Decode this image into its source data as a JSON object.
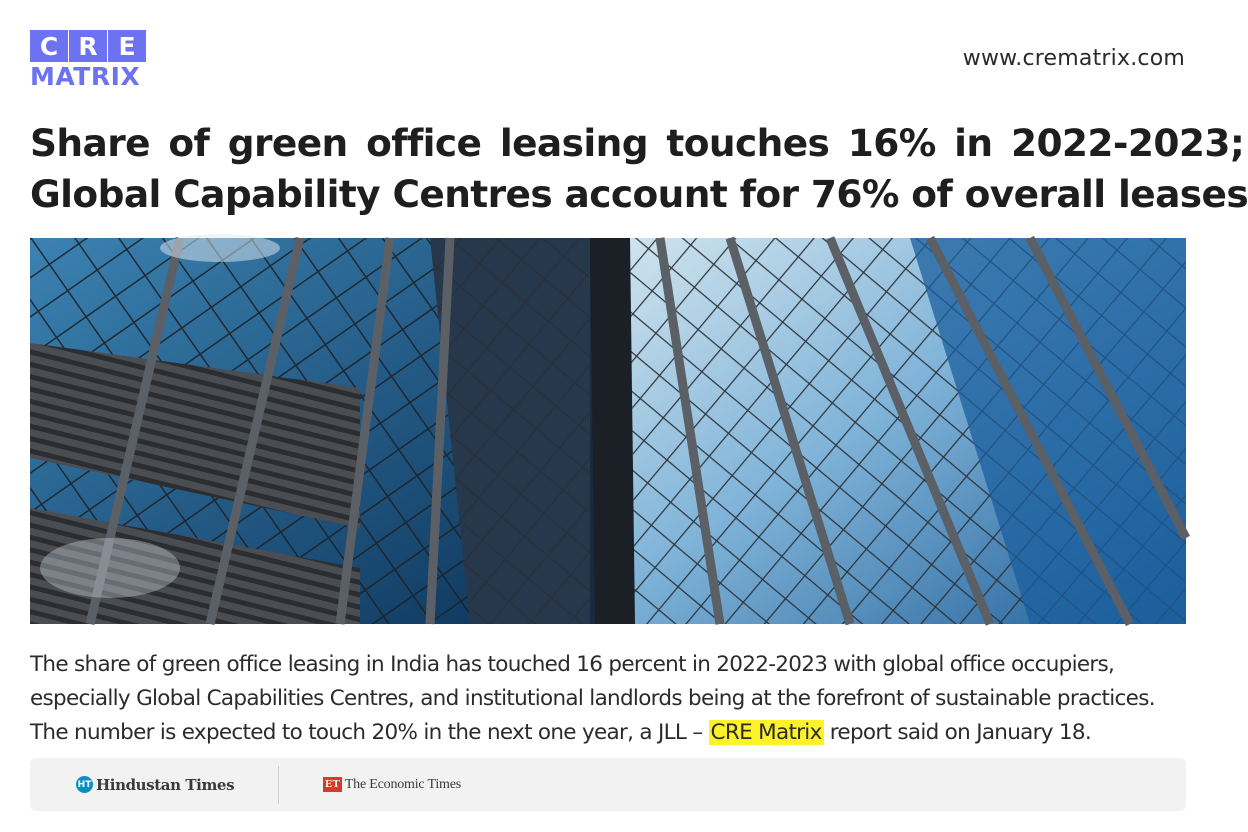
{
  "logo": {
    "letters": [
      "C",
      "R",
      "E"
    ],
    "subtitle": "MATRIX",
    "brand_color": "#6c72f2"
  },
  "site_url": "www.crematrix.com",
  "headline": {
    "line1": "Share of green office leasing touches 16% in 2022-2023;",
    "line2": "Global Capability Centres account for 76% of overall leases"
  },
  "photo": {
    "subject": "low-angle view of glass office tower facades against blue sky"
  },
  "body": {
    "line1": "The share of green office leasing in India has touched 16 percent in 2022-2023 with global office occupiers,",
    "line2": "especially Global Capabilities Centres, and institutional landlords being at the forefront of sustainable practices.",
    "line3_before": "The number is expected to touch 20% in the next one year, a JLL – ",
    "line3_highlight": "CRE Matrix",
    "line3_after": " report said on January 18.",
    "highlight_color": "#fdf22a"
  },
  "sources": {
    "ht_badge": "HT",
    "ht_name": "Hindustan Times",
    "et_badge": "ET",
    "et_name": "The Economic Times"
  }
}
